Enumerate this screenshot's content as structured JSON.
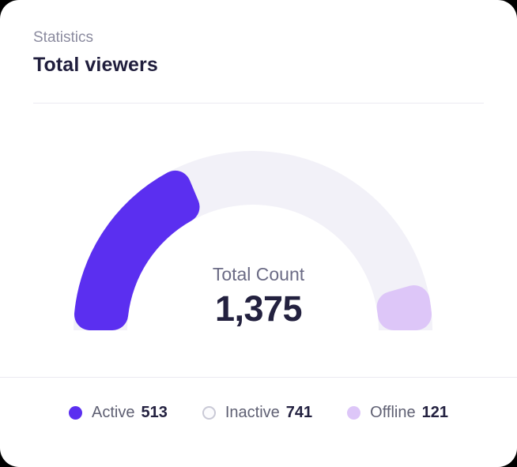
{
  "header": {
    "eyebrow": "Statistics",
    "title": "Total viewers"
  },
  "chart_data": {
    "type": "gauge",
    "subtitle": "Statistics",
    "title": "Total viewers",
    "center_label": "Total Count",
    "total": 1375,
    "total_display": "1,375",
    "arc_span_degrees": 180,
    "legend_position": "bottom",
    "series": [
      {
        "name": "Active",
        "value": 513,
        "color": "#5B2FF0",
        "swatch": "filled"
      },
      {
        "name": "Inactive",
        "value": 741,
        "color": "#F2F1F8",
        "swatch": "outlined"
      },
      {
        "name": "Offline",
        "value": 121,
        "color": "#DDC6F8",
        "swatch": "filled"
      }
    ]
  },
  "colors": {
    "card_background": "#FFFFFF",
    "page_background": "#000000",
    "divider": "#EBEAF2",
    "active": "#5B2FF0",
    "inactive_track": "#F2F1F8",
    "offline": "#DDC6F8",
    "inactive_dot_border": "#C9C9D6",
    "inactive_dot_fill": "#FBFBFD",
    "title_text": "#201E3D",
    "eyebrow_text": "#8B8B9F",
    "center_label_text": "#6B6B85",
    "center_value_text": "#23213F"
  }
}
